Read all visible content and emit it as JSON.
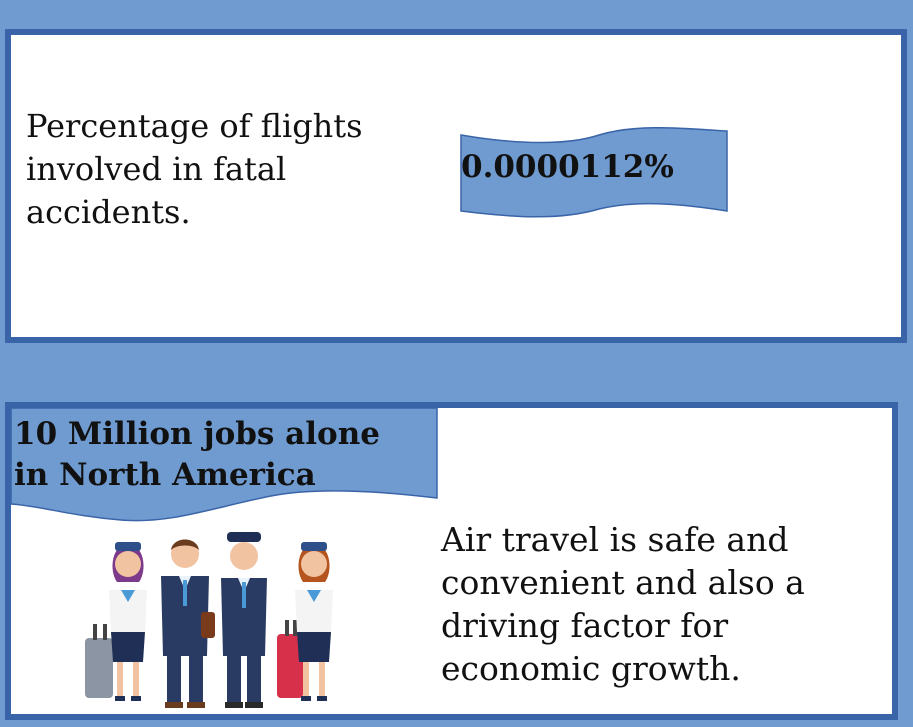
{
  "stat": {
    "label": "Percentage of flights\ninvolved in fatal\naccidents.",
    "value": "0.0000112%"
  },
  "jobs": {
    "headline": "10 Million jobs alone\nin North America",
    "body": "Air travel is safe and\nconvenient and also a\ndriving factor for\neconomic growth."
  },
  "illustration": {
    "icon": "flight-crew-illustration",
    "people": [
      "flight-attendant",
      "pilot",
      "pilot",
      "flight-attendant"
    ]
  },
  "colors": {
    "background": "#6f9bd0",
    "panel_border": "#3a64a8",
    "banner_fill": "#6f9bd0",
    "banner_stroke": "#3a64a8"
  }
}
